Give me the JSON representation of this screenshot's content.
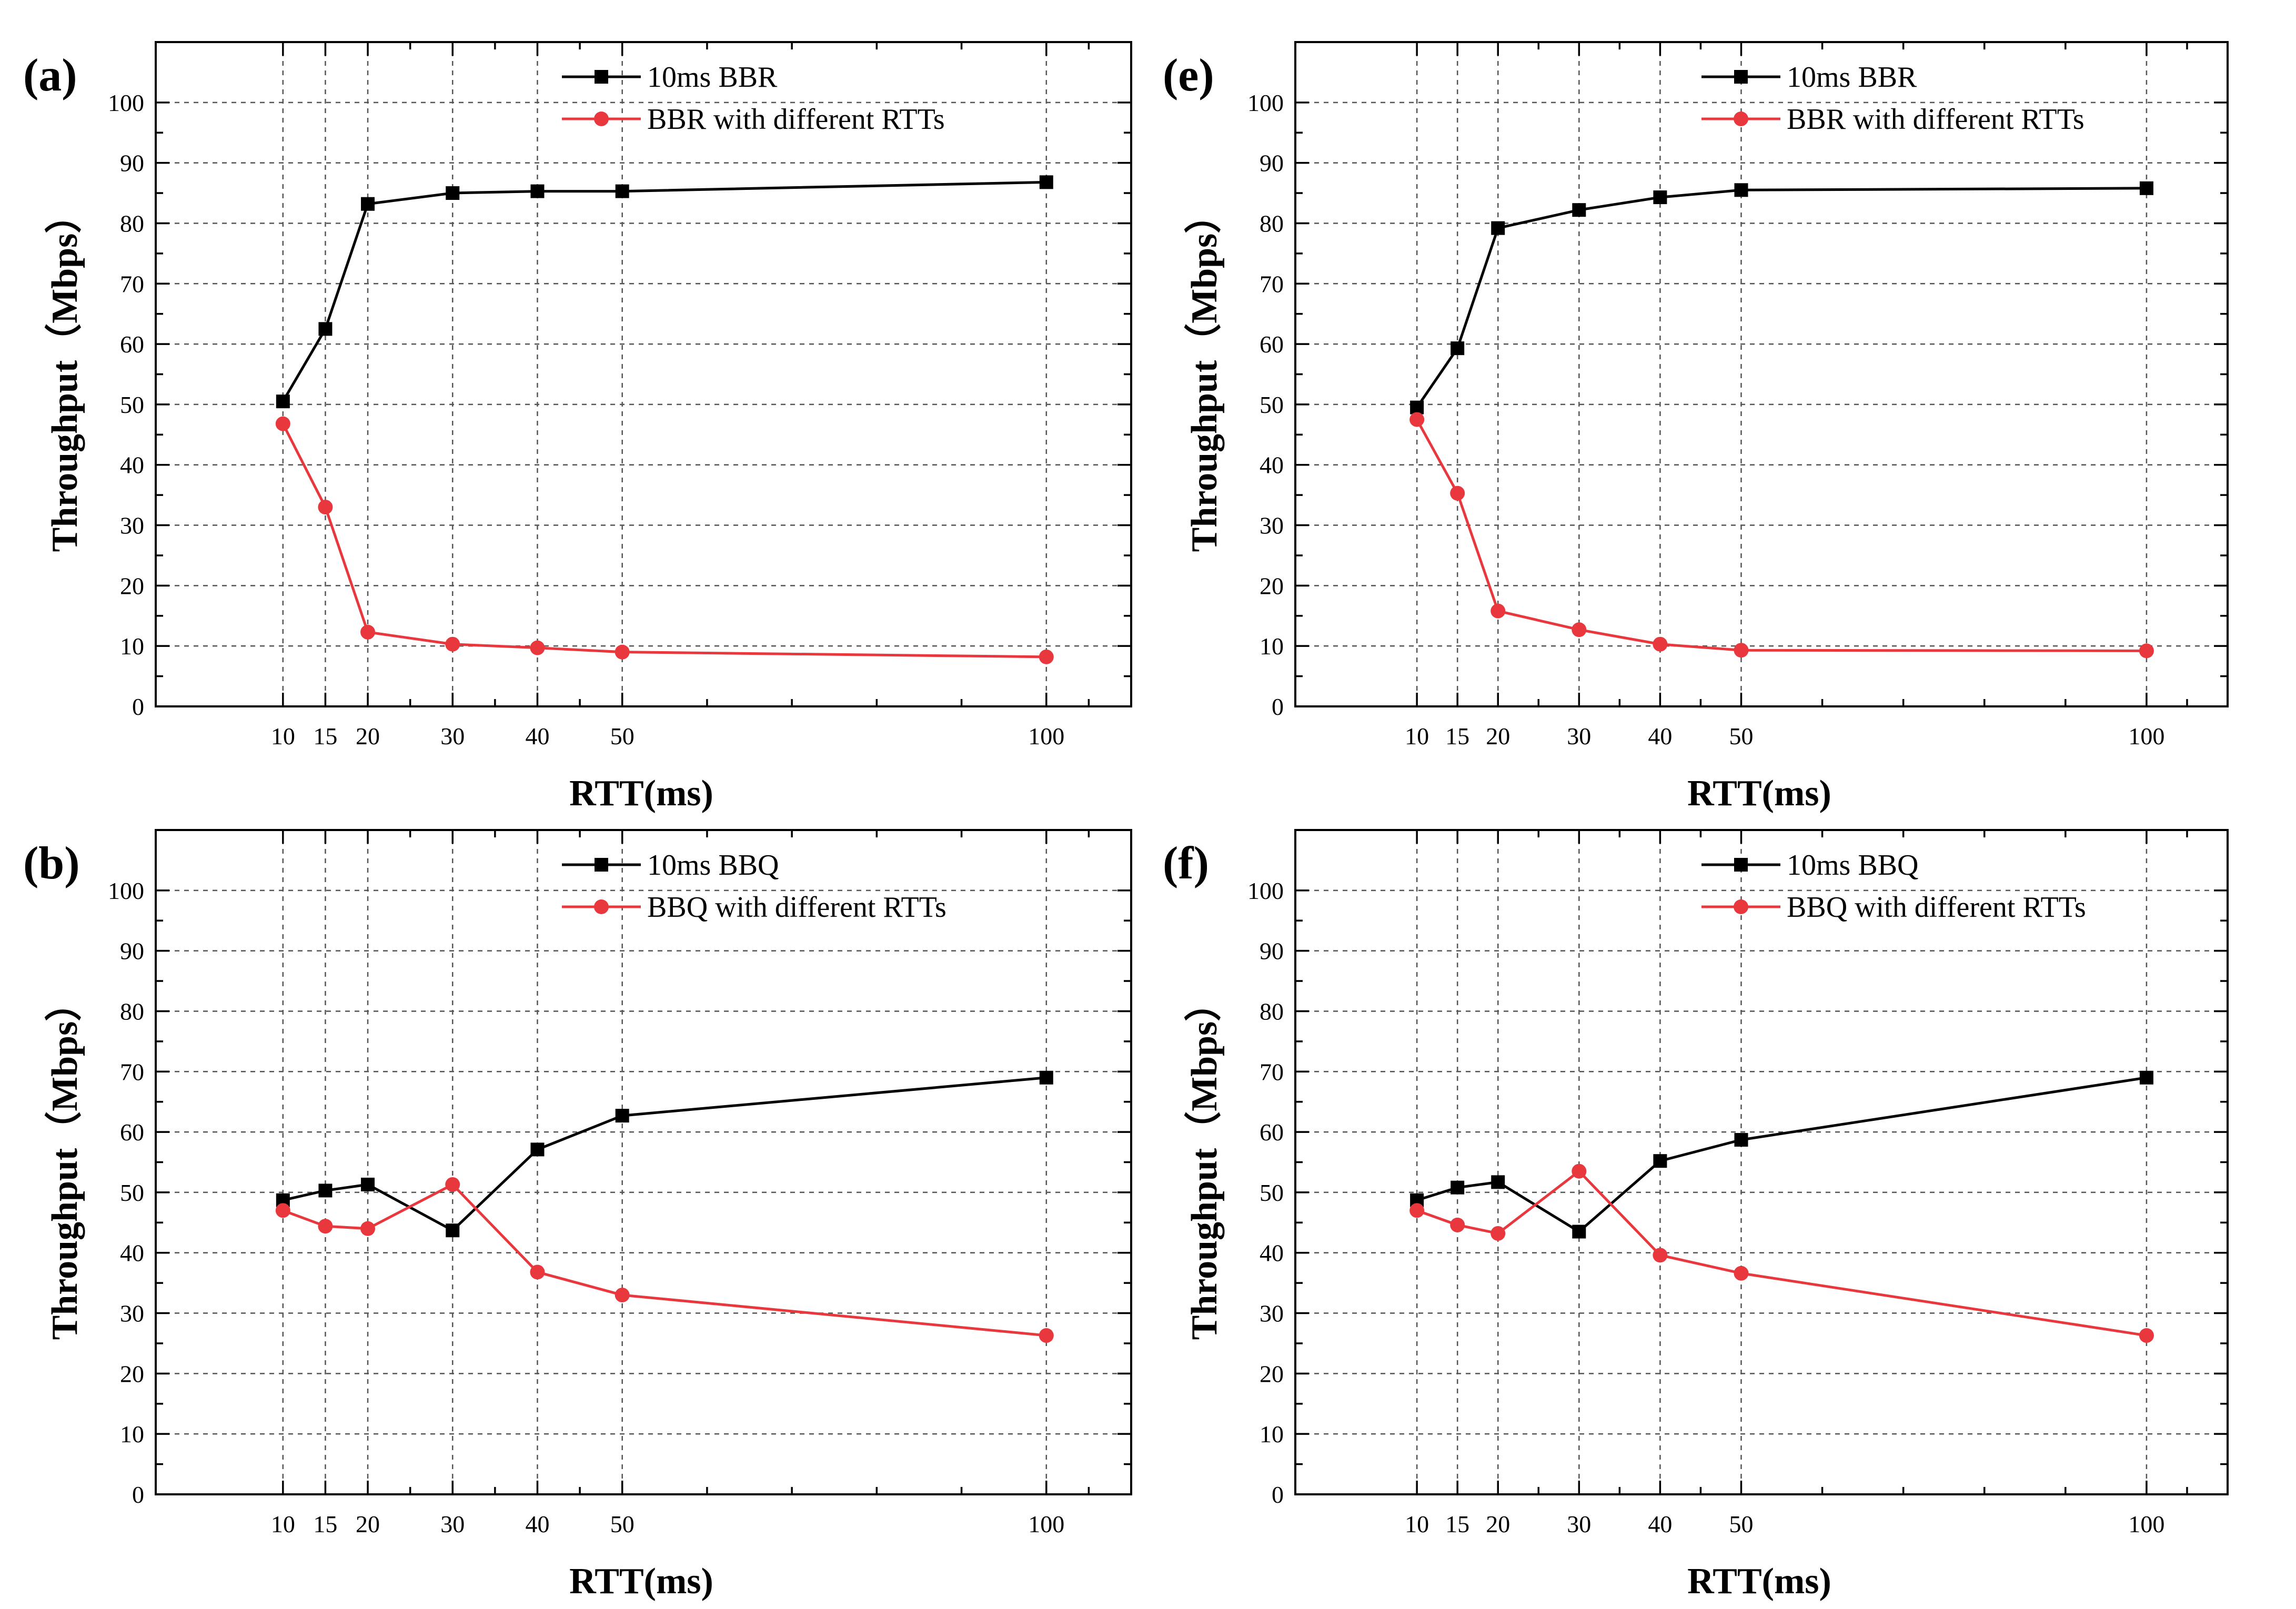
{
  "chart_data": [
    {
      "panel": "(a)",
      "type": "line",
      "xlabel": "RTT(ms)",
      "ylabel": "Throughput（Mbps）",
      "xlim": [
        -5,
        110
      ],
      "ylim": [
        0,
        110
      ],
      "x_ticks": [
        10,
        15,
        20,
        30,
        40,
        50,
        100
      ],
      "x_tick_labels": [
        "10",
        "15",
        "20",
        "30",
        "40",
        "50",
        "100"
      ],
      "x_minor": [
        25,
        35,
        45,
        60,
        70,
        80,
        90,
        105
      ],
      "y_ticks": [
        0,
        10,
        20,
        30,
        40,
        50,
        60,
        70,
        80,
        90,
        100
      ],
      "y_tick_labels": [
        "0",
        "10",
        "20",
        "30",
        "40",
        "50",
        "60",
        "70",
        "80",
        "90",
        "100"
      ],
      "grid": true,
      "legend_position": "top-center",
      "x": [
        10,
        15,
        20,
        30,
        40,
        50,
        100
      ],
      "series": [
        {
          "name": "10ms BBR",
          "color": "#000000",
          "marker": "square",
          "values": [
            50.5,
            62.5,
            83.2,
            85.0,
            85.3,
            85.3,
            86.8
          ]
        },
        {
          "name": "BBR with different RTTs",
          "color": "#e8383d",
          "marker": "circle",
          "values": [
            46.8,
            33.0,
            12.3,
            10.3,
            9.7,
            9.0,
            8.2
          ]
        }
      ]
    },
    {
      "panel": "(e)",
      "type": "line",
      "xlabel": "RTT(ms)",
      "ylabel": "Throughput（Mbps）",
      "xlim": [
        -5,
        110
      ],
      "ylim": [
        0,
        110
      ],
      "x_ticks": [
        10,
        15,
        20,
        30,
        40,
        50,
        100
      ],
      "x_tick_labels": [
        "10",
        "15",
        "20",
        "30",
        "40",
        "50",
        "100"
      ],
      "x_minor": [
        25,
        35,
        45,
        60,
        70,
        80,
        90,
        105
      ],
      "y_ticks": [
        0,
        10,
        20,
        30,
        40,
        50,
        60,
        70,
        80,
        90,
        100
      ],
      "y_tick_labels": [
        "0",
        "10",
        "20",
        "30",
        "40",
        "50",
        "60",
        "70",
        "80",
        "90",
        "100"
      ],
      "grid": true,
      "legend_position": "top-center",
      "x": [
        10,
        15,
        20,
        30,
        40,
        50,
        100
      ],
      "series": [
        {
          "name": "10ms BBR",
          "color": "#000000",
          "marker": "square",
          "values": [
            49.5,
            59.3,
            79.2,
            82.2,
            84.3,
            85.5,
            85.8
          ]
        },
        {
          "name": "BBR with different RTTs",
          "color": "#e8383d",
          "marker": "circle",
          "values": [
            47.5,
            35.3,
            15.8,
            12.7,
            10.3,
            9.3,
            9.2
          ]
        }
      ]
    },
    {
      "panel": "(b)",
      "type": "line",
      "xlabel": "RTT(ms)",
      "ylabel": "Throughput（Mbps）",
      "xlim": [
        -5,
        110
      ],
      "ylim": [
        0,
        110
      ],
      "x_ticks": [
        10,
        15,
        20,
        30,
        40,
        50,
        100
      ],
      "x_tick_labels": [
        "10",
        "15",
        "20",
        "30",
        "40",
        "50",
        "100"
      ],
      "x_minor": [
        25,
        35,
        45,
        60,
        70,
        80,
        90,
        105
      ],
      "y_ticks": [
        0,
        10,
        20,
        30,
        40,
        50,
        60,
        70,
        80,
        90,
        100
      ],
      "y_tick_labels": [
        "0",
        "10",
        "20",
        "30",
        "40",
        "50",
        "60",
        "70",
        "80",
        "90",
        "100"
      ],
      "grid": true,
      "legend_position": "top-center",
      "x": [
        10,
        15,
        20,
        30,
        40,
        50,
        100
      ],
      "series": [
        {
          "name": "10ms BBQ",
          "color": "#000000",
          "marker": "square",
          "values": [
            48.7,
            50.3,
            51.3,
            43.7,
            57.1,
            62.7,
            69.0
          ]
        },
        {
          "name": "BBQ with different RTTs",
          "color": "#e8383d",
          "marker": "circle",
          "values": [
            47.0,
            44.4,
            44.0,
            51.3,
            36.8,
            33.0,
            26.3
          ]
        }
      ]
    },
    {
      "panel": "(f)",
      "type": "line",
      "xlabel": "RTT(ms)",
      "ylabel": "Throughput（Mbps）",
      "xlim": [
        -5,
        110
      ],
      "ylim": [
        0,
        110
      ],
      "x_ticks": [
        10,
        15,
        20,
        30,
        40,
        50,
        100
      ],
      "x_tick_labels": [
        "10",
        "15",
        "20",
        "30",
        "40",
        "50",
        "100"
      ],
      "x_minor": [
        25,
        35,
        45,
        60,
        70,
        80,
        90,
        105
      ],
      "y_ticks": [
        0,
        10,
        20,
        30,
        40,
        50,
        60,
        70,
        80,
        90,
        100
      ],
      "y_tick_labels": [
        "0",
        "10",
        "20",
        "30",
        "40",
        "50",
        "60",
        "70",
        "80",
        "90",
        "100"
      ],
      "grid": true,
      "legend_position": "top-center",
      "x": [
        10,
        15,
        20,
        30,
        40,
        50,
        100
      ],
      "series": [
        {
          "name": "10ms BBQ",
          "color": "#000000",
          "marker": "square",
          "values": [
            48.7,
            50.8,
            51.7,
            43.5,
            55.2,
            58.7,
            69.0
          ]
        },
        {
          "name": "BBQ with different RTTs",
          "color": "#e8383d",
          "marker": "circle",
          "values": [
            47.0,
            44.6,
            43.2,
            53.5,
            39.6,
            36.6,
            26.3
          ]
        }
      ]
    }
  ]
}
